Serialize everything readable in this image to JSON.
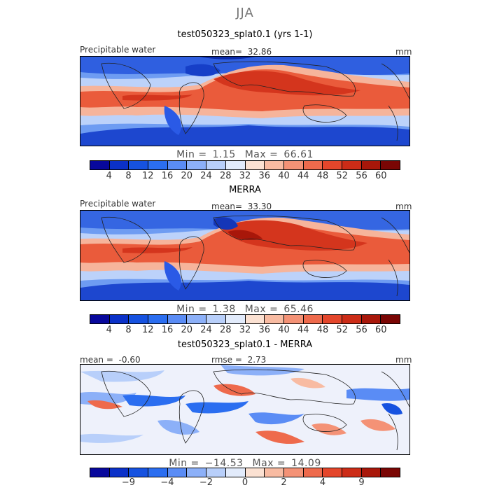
{
  "season": "JJA",
  "panels": [
    {
      "title": "test050323_splat0.1 (yrs 1-1)",
      "field_label": "Precipitable water",
      "stat_label": "mean=",
      "stat_value": "32.86",
      "units": "mm",
      "min_label": "Min =",
      "min_value": "1.15",
      "max_label": "Max =",
      "max_value": "66.61"
    },
    {
      "title": "MERRA",
      "field_label": "Precipitable water",
      "stat_label": "mean=",
      "stat_value": "33.30",
      "units": "mm",
      "min_label": "Min =",
      "min_value": "1.38",
      "max_label": "Max =",
      "max_value": "65.46"
    },
    {
      "title": "test050323_splat0.1 - MERRA",
      "mean_label": "mean =",
      "mean_value": "-0.60",
      "rmse_label": "rmse =",
      "rmse_value": "2.73",
      "units": "mm",
      "min_label": "Min =",
      "min_value": "−14.53",
      "max_label": "Max =",
      "max_value": "14.09"
    }
  ],
  "colorbar_abs": {
    "colors": [
      "#08089c",
      "#0b31c8",
      "#1652e0",
      "#2b6ef0",
      "#5a8cf5",
      "#8cb0f8",
      "#b8cffa",
      "#e2ebfb",
      "#fbe1d2",
      "#f8bba2",
      "#f49276",
      "#ee6a4c",
      "#e4462b",
      "#cc2c17",
      "#a8170a",
      "#7a0604"
    ],
    "ticks": [
      "4",
      "8",
      "12",
      "16",
      "20",
      "24",
      "28",
      "32",
      "36",
      "40",
      "44",
      "48",
      "52",
      "56",
      "60"
    ]
  },
  "colorbar_diff": {
    "colors": [
      "#08089c",
      "#0b31c8",
      "#1652e0",
      "#2b6ef0",
      "#5a8cf5",
      "#8cb0f8",
      "#b8cffa",
      "#e2ebfb",
      "#fbe1d2",
      "#f8bba2",
      "#f49276",
      "#ee6a4c",
      "#e4462b",
      "#cc2c17",
      "#a8170a",
      "#7a0604"
    ],
    "ticks": [
      "−9",
      "−4",
      "−2",
      "0",
      "2",
      "4",
      "9"
    ],
    "tick_positions": [
      0.125,
      0.25,
      0.375,
      0.5,
      0.625,
      0.75,
      0.875
    ]
  }
}
